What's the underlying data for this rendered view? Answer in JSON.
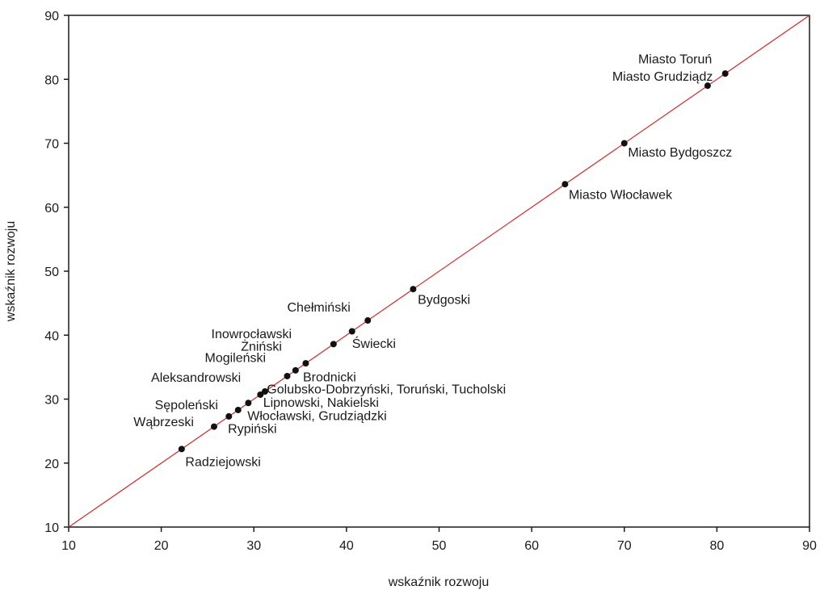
{
  "chart_data": {
    "type": "scatter",
    "xlabel": "wskaźnik rozwoju",
    "ylabel": "wskaźnik rozwoju",
    "xlim": [
      10,
      90
    ],
    "ylim": [
      10,
      90
    ],
    "xticks": [
      10,
      20,
      30,
      40,
      50,
      60,
      70,
      80,
      90
    ],
    "yticks": [
      10,
      20,
      30,
      40,
      50,
      60,
      70,
      80,
      90
    ],
    "grid": false,
    "reference_line": {
      "from": [
        10,
        10
      ],
      "to": [
        90,
        90
      ],
      "color": "#d42a2a"
    },
    "point_color": "#111111",
    "points": [
      {
        "x": 80.9,
        "y": 80.9
      },
      {
        "x": 79.0,
        "y": 79.0
      },
      {
        "x": 70.0,
        "y": 70.0
      },
      {
        "x": 63.6,
        "y": 63.6
      },
      {
        "x": 47.2,
        "y": 47.2
      },
      {
        "x": 42.3,
        "y": 42.3
      },
      {
        "x": 40.6,
        "y": 40.6
      },
      {
        "x": 38.6,
        "y": 38.6
      },
      {
        "x": 35.6,
        "y": 35.6
      },
      {
        "x": 34.5,
        "y": 34.5
      },
      {
        "x": 33.6,
        "y": 33.6
      },
      {
        "x": 31.2,
        "y": 31.2
      },
      {
        "x": 30.7,
        "y": 30.7
      },
      {
        "x": 29.4,
        "y": 29.4
      },
      {
        "x": 28.3,
        "y": 28.3
      },
      {
        "x": 27.3,
        "y": 27.3
      },
      {
        "x": 25.7,
        "y": 25.7
      },
      {
        "x": 22.2,
        "y": 22.2
      }
    ],
    "annotations": [
      {
        "text": "Miasto Toruń",
        "x": 71.5,
        "y": 82.5
      },
      {
        "text": "Miasto Grudziądz",
        "x": 68.7,
        "y": 79.8
      },
      {
        "text": "Miasto Bydgoszcz",
        "x": 70.4,
        "y": 67.9
      },
      {
        "text": "Miasto Włocławek",
        "x": 64.0,
        "y": 61.3
      },
      {
        "text": "Bydgoski",
        "x": 47.7,
        "y": 44.9
      },
      {
        "text": "Chełmiński",
        "x": 33.6,
        "y": 43.7
      },
      {
        "text": "Świecki",
        "x": 40.6,
        "y": 38.0
      },
      {
        "text": "Inowrocławski",
        "x": 25.4,
        "y": 39.5
      },
      {
        "text": "Żniński",
        "x": 28.6,
        "y": 37.6
      },
      {
        "text": "Mogileński",
        "x": 24.7,
        "y": 35.8
      },
      {
        "text": "Brodnicki",
        "x": 35.3,
        "y": 32.8
      },
      {
        "text": "Aleksandrowski",
        "x": 18.9,
        "y": 32.7
      },
      {
        "text": "Golubsko-Dobrzyński, Toruński, Tucholski",
        "x": 31.4,
        "y": 30.9
      },
      {
        "text": "Lipnowski, Nakielski",
        "x": 31.0,
        "y": 28.8
      },
      {
        "text": "Sępoleński",
        "x": 19.3,
        "y": 28.4
      },
      {
        "text": "Włocławski, Grudziądzki",
        "x": 29.3,
        "y": 26.7
      },
      {
        "text": "Wąbrzeski",
        "x": 17.0,
        "y": 25.8
      },
      {
        "text": "Rypiński",
        "x": 27.2,
        "y": 24.7
      },
      {
        "text": "Radziejowski",
        "x": 22.6,
        "y": 19.5
      }
    ]
  }
}
